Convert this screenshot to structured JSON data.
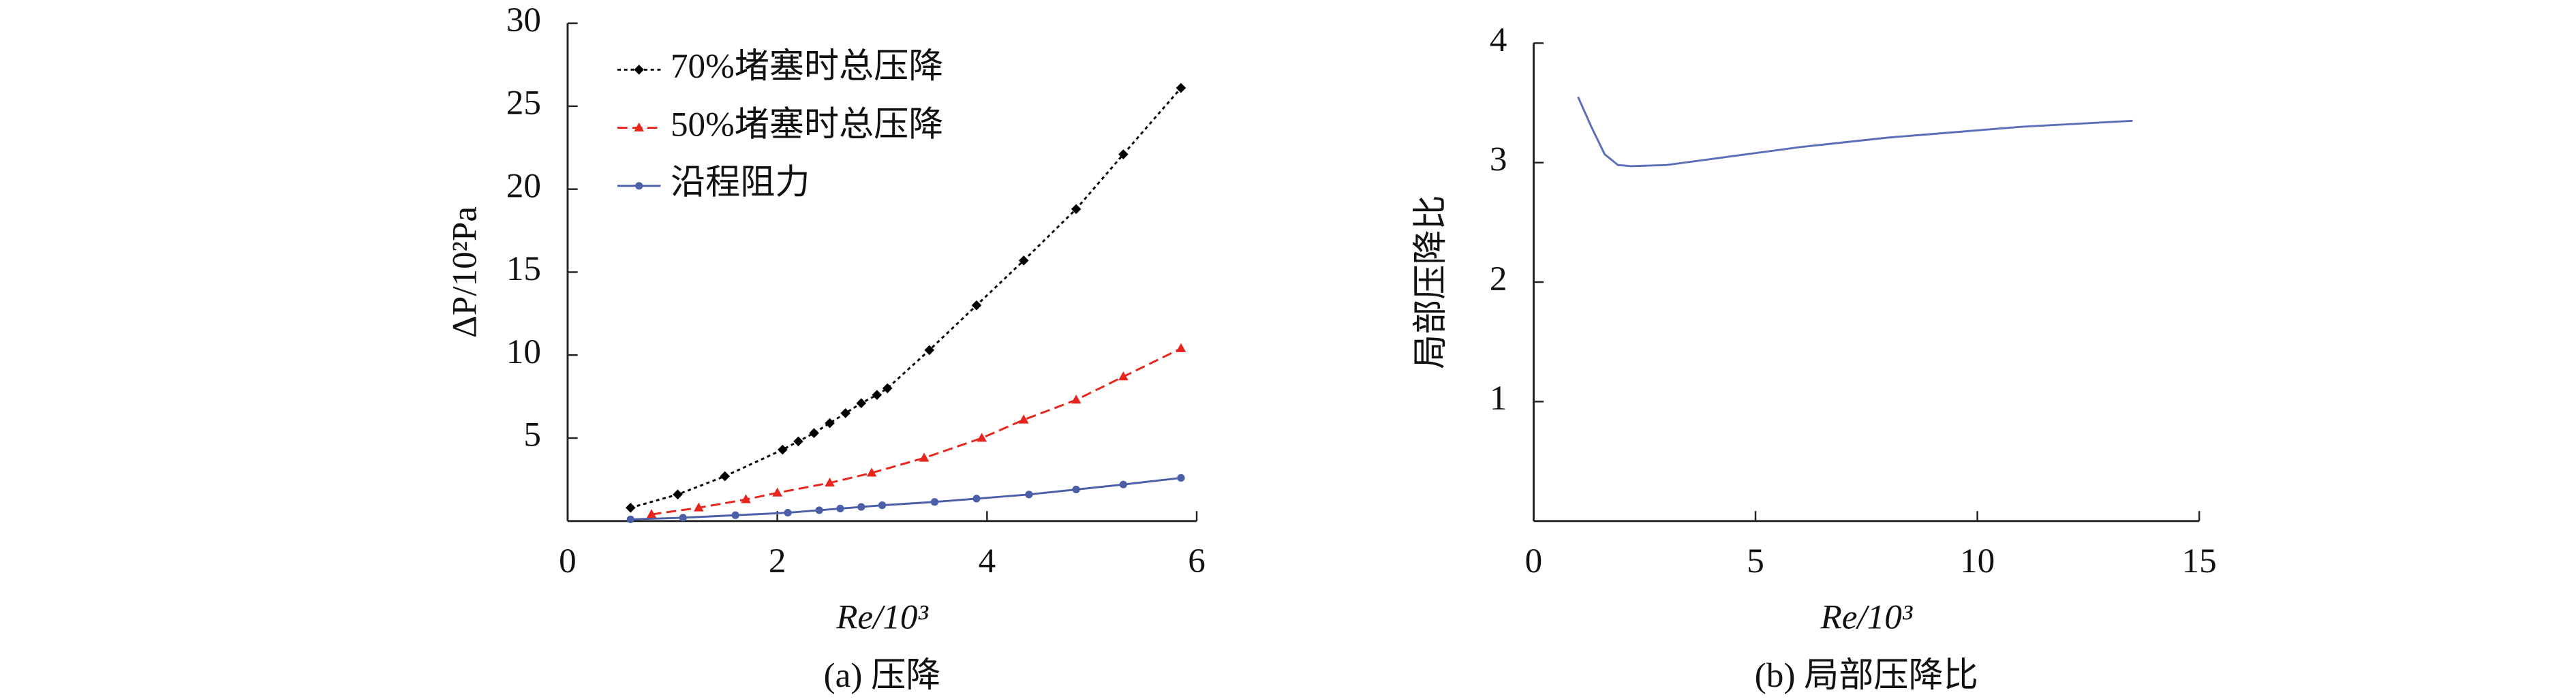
{
  "chart_data": [
    {
      "type": "line",
      "caption": "(a) 压降",
      "xlabel": "Re/10³",
      "ylabel": "ΔP/10²Pa",
      "xlim": [
        0,
        6
      ],
      "xticks": [
        0,
        2,
        4,
        6
      ],
      "ylim": [
        0,
        30
      ],
      "yticks": [
        5,
        10,
        15,
        20,
        25,
        30
      ],
      "legend": "upper left",
      "series": [
        {
          "name": "70%堵塞时总压降",
          "color": "#000000",
          "dash": "dotted",
          "marker": "diamond",
          "x": [
            0.6,
            1.05,
            1.5,
            2.05,
            2.2,
            2.35,
            2.5,
            2.65,
            2.8,
            2.95,
            3.05,
            3.45,
            3.9,
            4.35,
            4.85,
            5.3,
            5.85
          ],
          "values": [
            0.8,
            1.6,
            2.7,
            4.3,
            4.8,
            5.3,
            5.9,
            6.5,
            7.1,
            7.6,
            8.0,
            10.3,
            13.0,
            15.7,
            18.8,
            22.1,
            26.1
          ]
        },
        {
          "name": "50%堵塞时总压降",
          "color": "#e8251c",
          "dash": "dashed",
          "marker": "triangle",
          "x": [
            0.8,
            1.25,
            1.7,
            2.0,
            2.5,
            2.9,
            3.4,
            3.95,
            4.35,
            4.85,
            5.3,
            5.85
          ],
          "values": [
            0.4,
            0.8,
            1.3,
            1.7,
            2.3,
            2.9,
            3.8,
            5.0,
            6.1,
            7.3,
            8.7,
            10.4
          ]
        },
        {
          "name": "沿程阻力",
          "color": "#4a5fa8",
          "dash": "solid",
          "marker": "circle",
          "x": [
            0.6,
            1.1,
            1.6,
            2.1,
            2.4,
            2.6,
            2.8,
            3.0,
            3.5,
            3.9,
            4.4,
            4.85,
            5.3,
            5.85
          ],
          "values": [
            0.1,
            0.2,
            0.35,
            0.5,
            0.65,
            0.75,
            0.85,
            0.95,
            1.15,
            1.35,
            1.6,
            1.9,
            2.2,
            2.6
          ]
        }
      ]
    },
    {
      "type": "line",
      "caption": "(b) 局部压降比",
      "xlabel": "Re/10³",
      "ylabel": "局部压降比",
      "xlim": [
        0,
        15
      ],
      "xticks": [
        0,
        5,
        10,
        15
      ],
      "ylim": [
        0,
        4
      ],
      "yticks": [
        1,
        2,
        3,
        4
      ],
      "series": [
        {
          "color": "#5b6eb8",
          "dash": "solid",
          "x": [
            1,
            1.3,
            1.6,
            1.9,
            2.2,
            3,
            4,
            5,
            6,
            7,
            8,
            9,
            10,
            11,
            12,
            13,
            13.5
          ],
          "values": [
            3.55,
            3.3,
            3.07,
            2.98,
            2.97,
            2.98,
            3.03,
            3.08,
            3.13,
            3.17,
            3.21,
            3.24,
            3.27,
            3.3,
            3.32,
            3.34,
            3.35
          ]
        }
      ]
    }
  ]
}
